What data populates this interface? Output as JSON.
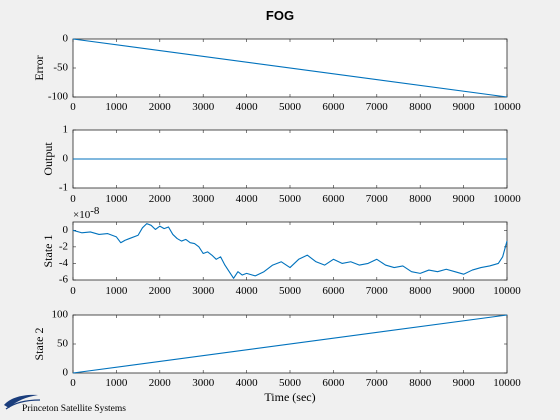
{
  "figure": {
    "title": "FOG",
    "xlabel": "Time (sec)",
    "background": "#f0f0f0",
    "line_color": "#0072bd"
  },
  "logo": {
    "text": "Princeton Satellite Systems"
  },
  "chart_data": [
    {
      "type": "line",
      "ylabel": "Error",
      "xlim": [
        0,
        10000
      ],
      "ylim": [
        -100,
        0
      ],
      "xticks": [
        "0",
        "1000",
        "2000",
        "3000",
        "4000",
        "5000",
        "6000",
        "7000",
        "8000",
        "9000",
        "10000"
      ],
      "yticks": [
        "0",
        "-50",
        "-100"
      ],
      "yticks_values": [
        0,
        -50,
        -100
      ],
      "series": [
        {
          "x": [
            0,
            10000
          ],
          "y": [
            0,
            -100
          ]
        }
      ]
    },
    {
      "type": "line",
      "ylabel": "Output",
      "xlim": [
        0,
        10000
      ],
      "ylim": [
        -1,
        1
      ],
      "xticks": [
        "0",
        "1000",
        "2000",
        "3000",
        "4000",
        "5000",
        "6000",
        "7000",
        "8000",
        "9000",
        "10000"
      ],
      "yticks": [
        "1",
        "0",
        "-1"
      ],
      "yticks_values": [
        1,
        0,
        -1
      ],
      "series": [
        {
          "x": [
            0,
            10000
          ],
          "y": [
            0,
            0
          ]
        }
      ]
    },
    {
      "type": "line",
      "ylabel": "State 1",
      "exponent_base": "×10",
      "exponent_power": "-8",
      "xlim": [
        0,
        10000
      ],
      "ylim": [
        -6,
        1
      ],
      "xticks": [
        "0",
        "1000",
        "2000",
        "3000",
        "4000",
        "5000",
        "6000",
        "7000",
        "8000",
        "9000",
        "10000"
      ],
      "yticks": [
        "0",
        "-2",
        "-4",
        "-6"
      ],
      "yticks_values": [
        0,
        -2,
        -4,
        -6
      ],
      "series": [
        {
          "x": [
            0,
            200,
            400,
            600,
            800,
            1000,
            1100,
            1200,
            1300,
            1500,
            1600,
            1700,
            1800,
            1900,
            2000,
            2100,
            2200,
            2300,
            2400,
            2500,
            2600,
            2700,
            2800,
            2900,
            3000,
            3100,
            3200,
            3300,
            3400,
            3500,
            3600,
            3700,
            3800,
            3900,
            4000,
            4200,
            4400,
            4600,
            4800,
            5000,
            5200,
            5400,
            5600,
            5800,
            6000,
            6200,
            6400,
            6600,
            6800,
            7000,
            7200,
            7400,
            7600,
            7800,
            8000,
            8200,
            8400,
            8600,
            8800,
            9000,
            9200,
            9400,
            9600,
            9800,
            9900,
            10000
          ],
          "y": [
            0,
            -0.3,
            -0.2,
            -0.5,
            -0.4,
            -0.8,
            -1.5,
            -1.2,
            -1.0,
            -0.6,
            0.3,
            0.8,
            0.6,
            0.1,
            0.5,
            0.2,
            0.4,
            -0.5,
            -1.0,
            -1.3,
            -1.1,
            -1.5,
            -1.6,
            -2.0,
            -2.8,
            -2.6,
            -3.0,
            -3.5,
            -3.2,
            -4.2,
            -5.0,
            -5.8,
            -5.0,
            -5.4,
            -5.2,
            -5.5,
            -5.0,
            -4.2,
            -3.8,
            -4.5,
            -3.5,
            -3.0,
            -3.8,
            -4.2,
            -3.5,
            -4.0,
            -3.8,
            -4.2,
            -4.0,
            -3.5,
            -4.2,
            -4.5,
            -4.3,
            -5.0,
            -5.2,
            -4.8,
            -5.0,
            -4.7,
            -5.0,
            -5.3,
            -4.8,
            -4.5,
            -4.3,
            -4.0,
            -3.2,
            -1.3
          ]
        }
      ]
    },
    {
      "type": "line",
      "ylabel": "State 2",
      "xlim": [
        0,
        10000
      ],
      "ylim": [
        0,
        100
      ],
      "xticks": [
        "0",
        "1000",
        "2000",
        "3000",
        "4000",
        "5000",
        "6000",
        "7000",
        "8000",
        "9000",
        "10000"
      ],
      "yticks": [
        "100",
        "50",
        "0"
      ],
      "yticks_values": [
        100,
        50,
        0
      ],
      "series": [
        {
          "x": [
            0,
            10000
          ],
          "y": [
            0,
            100
          ]
        }
      ]
    }
  ]
}
